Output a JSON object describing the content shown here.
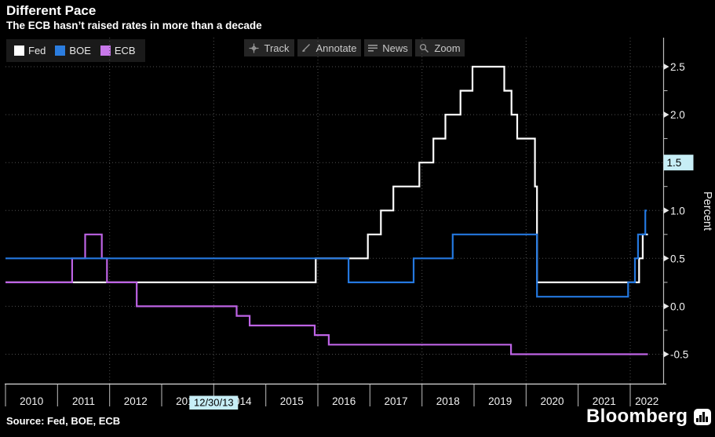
{
  "header": {
    "title": "Different Pace",
    "subtitle": "The ECB hasn’t raised rates in more than a decade"
  },
  "legend": {
    "items": [
      {
        "label": "Fed",
        "color": "#ffffff"
      },
      {
        "label": "BOE",
        "color": "#2b7de0"
      },
      {
        "label": "ECB",
        "color": "#c878ea"
      }
    ]
  },
  "toolbar": {
    "buttons": [
      {
        "label": "Track",
        "icon": "track-icon"
      },
      {
        "label": "Annotate",
        "icon": "annotate-icon"
      },
      {
        "label": "News",
        "icon": "news-icon"
      },
      {
        "label": "Zoom",
        "icon": "zoom-icon"
      }
    ]
  },
  "chart_data": {
    "type": "line",
    "step": true,
    "title": "Different Pace",
    "xlabel": "",
    "ylabel": "Percent",
    "xlim": [
      2010,
      2022.641
    ],
    "ylim": [
      -0.811,
      2.803
    ],
    "grid": "dotted",
    "legend_position": "top-left",
    "x_ticks": [
      "2010",
      "2011",
      "2012",
      "2013",
      "2014",
      "2015",
      "2016",
      "2017",
      "2018",
      "2019",
      "2020",
      "2021",
      "2022"
    ],
    "x_gridlines": [
      2012,
      2014,
      2016,
      2018,
      2020,
      2022
    ],
    "y_ticks": {
      "values": [
        2.5,
        2.0,
        1.5,
        1.0,
        0.5,
        0.0,
        -0.5
      ],
      "labels": [
        "2.5",
        "2.0",
        "1.5",
        "1.0",
        "0.5",
        "0.0",
        "-0.5"
      ],
      "minor": [
        2.25,
        1.75,
        1.25,
        0.75,
        0.25,
        -0.25
      ]
    },
    "series": [
      {
        "name": "Fed",
        "color": "#ffffff",
        "t_end": 2022.34,
        "points": [
          [
            2010.0,
            0.25
          ],
          [
            2015.96,
            0.5
          ],
          [
            2016.96,
            0.75
          ],
          [
            2017.21,
            1.0
          ],
          [
            2017.45,
            1.25
          ],
          [
            2017.95,
            1.5
          ],
          [
            2018.22,
            1.75
          ],
          [
            2018.45,
            2.0
          ],
          [
            2018.74,
            2.25
          ],
          [
            2018.97,
            2.5
          ],
          [
            2019.58,
            2.25
          ],
          [
            2019.72,
            2.0
          ],
          [
            2019.83,
            1.75
          ],
          [
            2020.17,
            1.25
          ],
          [
            2020.21,
            0.25
          ],
          [
            2022.17,
            0.5
          ],
          [
            2022.24,
            0.75
          ]
        ]
      },
      {
        "name": "ECB",
        "color": "#bd63e4",
        "t_end": 2022.34,
        "points": [
          [
            2010.0,
            0.25
          ],
          [
            2011.28,
            0.5
          ],
          [
            2011.53,
            0.75
          ],
          [
            2011.85,
            0.5
          ],
          [
            2011.95,
            0.25
          ],
          [
            2012.52,
            0.0
          ],
          [
            2014.44,
            -0.1
          ],
          [
            2014.69,
            -0.2
          ],
          [
            2015.94,
            -0.3
          ],
          [
            2016.21,
            -0.4
          ],
          [
            2019.71,
            -0.5
          ]
        ]
      },
      {
        "name": "BOE",
        "color": "#2478df",
        "t_end": 2022.32,
        "points": [
          [
            2010.0,
            0.5
          ],
          [
            2016.59,
            0.25
          ],
          [
            2017.84,
            0.5
          ],
          [
            2018.59,
            0.75
          ],
          [
            2020.21,
            0.1
          ],
          [
            2021.96,
            0.25
          ],
          [
            2022.09,
            0.5
          ],
          [
            2022.15,
            0.75
          ],
          [
            2022.29,
            1.0
          ]
        ]
      }
    ],
    "track": {
      "x_label": "12/30/13",
      "y_label": "1.5",
      "x_value": 2014.0,
      "y_value": 1.5,
      "badge_color": "#c7eef6"
    }
  },
  "footer": {
    "source": "Source: Fed, BOE, ECB",
    "brand": "Bloomberg"
  }
}
